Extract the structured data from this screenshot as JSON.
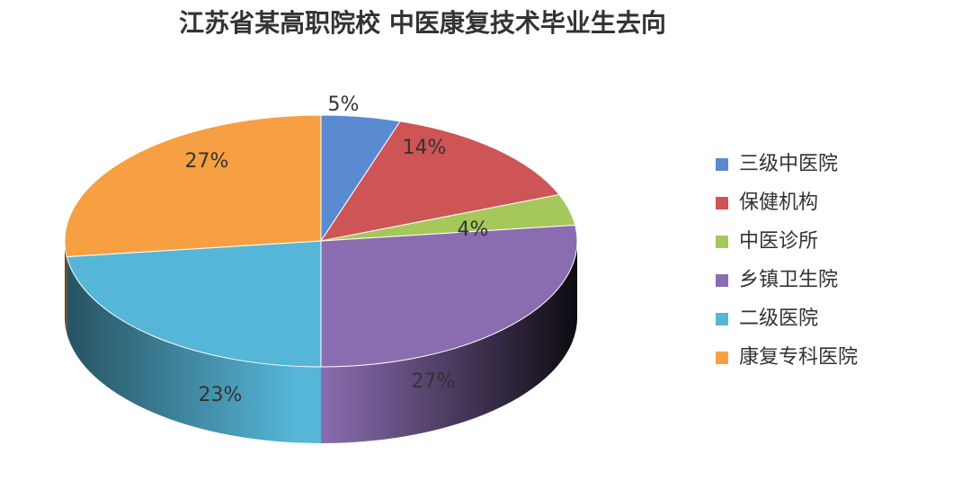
{
  "chart_data": {
    "type": "pie",
    "title": "江苏省某高职院校 中医康复技术毕业生去向",
    "categories": [
      "三级中医院",
      "保健机构",
      "中医诊所",
      "乡镇卫生院",
      "二级医院",
      "康复专科医院"
    ],
    "values": [
      5,
      14,
      4,
      27,
      23,
      27
    ],
    "value_labels": [
      "5%",
      "14%",
      "4%",
      "27%",
      "23%",
      "27%"
    ],
    "colors": [
      "#5a8bd1",
      "#cd5555",
      "#a6c75a",
      "#8a6db1",
      "#56b6d7",
      "#f6a043"
    ],
    "legend": "right"
  }
}
